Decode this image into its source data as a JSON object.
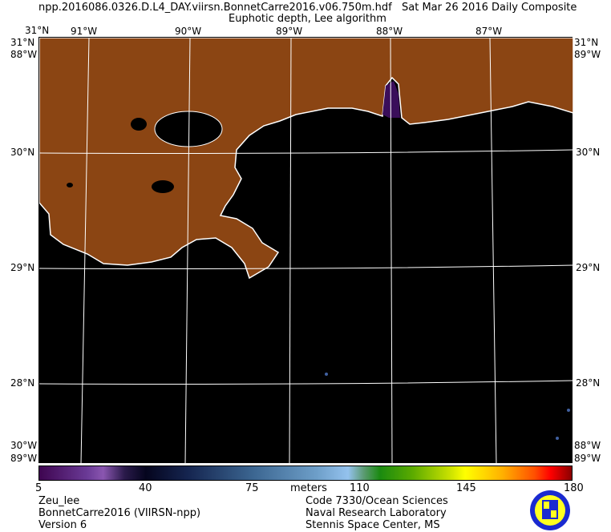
{
  "header": {
    "filename": "npp.2016086.0326.D.L4_DAY.viirsn.BonnetCarre2016.v06.750m.hdf",
    "date": "Sat Mar 26 2016 Daily Composite",
    "subtitle": "Euphotic depth, Lee algorithm"
  },
  "map": {
    "lon_labels": [
      "91°W",
      "90°W",
      "89°W",
      "88°W",
      "87°W"
    ],
    "lat_labels": [
      "30°N",
      "29°N",
      "28°N"
    ],
    "corner_labels": {
      "top_left": "31°N",
      "left_top_lat": "31°N",
      "left_top_lon": "88°W",
      "right_top_lat": "31°N",
      "right_top_lon": "89°W",
      "bottom_left_a": "30°W",
      "bottom_left_b": "89°W",
      "bottom_right_a": "88°W",
      "bottom_right_b": "89°W"
    },
    "colors": {
      "land": "#8B4513",
      "water_no_data": "#000000",
      "coast": "#ffffff",
      "grid": "#ffffff"
    }
  },
  "colorbar": {
    "ticks": [
      "5",
      "40",
      "75",
      "110",
      "145",
      "180"
    ],
    "units": "meters",
    "range": [
      5,
      180
    ]
  },
  "footer": {
    "left": [
      "Zeu_lee",
      "BonnetCarre2016 (VIIRSN-npp)",
      "Version 6"
    ],
    "right": [
      "Code 7330/Ocean Sciences",
      "Naval Research Laboratory",
      "Stennis Space Center, MS"
    ]
  }
}
